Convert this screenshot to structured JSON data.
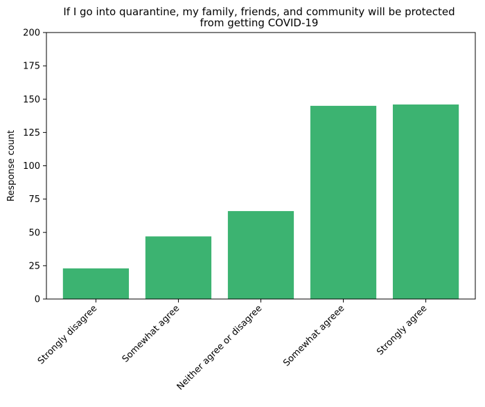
{
  "chart_data": {
    "type": "bar",
    "title_lines": [
      "If I go into quarantine, my family, friends, and community will be protected",
      "from getting COVID-19"
    ],
    "xlabel": "",
    "ylabel": "Response count",
    "categories": [
      "Strongly disagree",
      "Somewhat agree",
      "Neither agree or disagree",
      "Somewhat agreee",
      "Strongly agree"
    ],
    "values": [
      23,
      47,
      66,
      145,
      146
    ],
    "ylim": [
      0,
      200
    ],
    "yticks": [
      0,
      25,
      50,
      75,
      100,
      125,
      150,
      175,
      200
    ],
    "bar_color": "#3cb371",
    "grid": false,
    "legend": "none"
  }
}
